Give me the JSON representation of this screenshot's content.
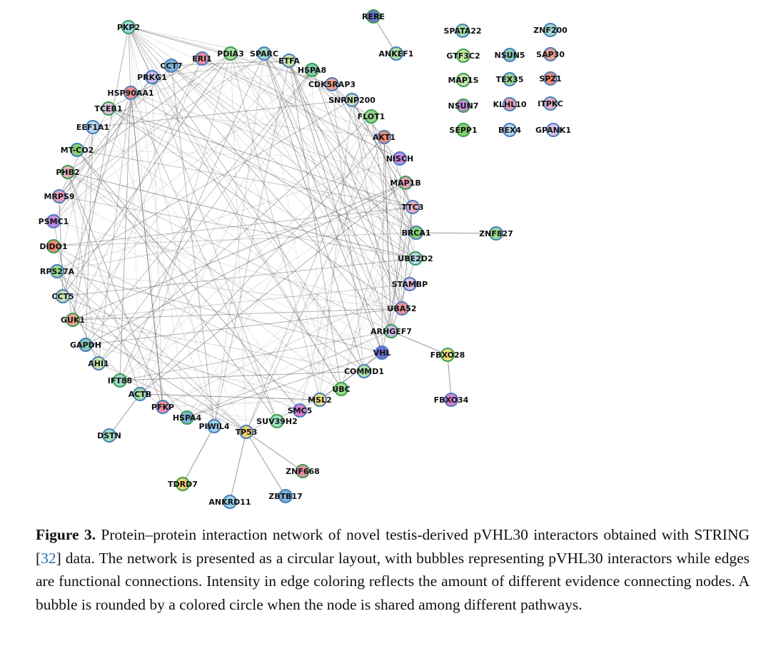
{
  "figure": {
    "nodes": [
      "PKP2",
      "CCT7",
      "ERI1",
      "PDIA3",
      "SPARC",
      "ETFA",
      "HSPA8",
      "CDK5RAP3",
      "SNRNP200",
      "FLOT1",
      "AKT1",
      "NISCH",
      "MAP1B",
      "TTC3",
      "BRCA1",
      "UBE2D2",
      "STAMBP",
      "UBA52",
      "ARHGEF7",
      "VHL",
      "COMMD1",
      "UBC",
      "MSL2",
      "SMC5",
      "SUV39H2",
      "TP53",
      "PIWIL4",
      "HSPA4",
      "PFKP",
      "ACTB",
      "IFT88",
      "AHI1",
      "GAPDH",
      "GUK1",
      "CCT5",
      "RPS27A",
      "DIDO1",
      "PSMC1",
      "MRPS9",
      "PHB2",
      "MT-CO2",
      "EEF1A1",
      "TCEB1",
      "HSP90AA1",
      "PRKG1",
      "RERE",
      "ANKEF1",
      "ZNF827",
      "FBXO28",
      "FBXO34",
      "DSTN",
      "TDRD7",
      "ANKRD11",
      "ZBTB17",
      "ZNF668",
      "SPATA22",
      "ZNF200",
      "GTF3C2",
      "NSUN5",
      "SAP30",
      "MAP1S",
      "TEX35",
      "SPZ1",
      "NSUN7",
      "KLHL10",
      "ITPKC",
      "SEPP1",
      "BEX4",
      "GPANK1"
    ]
  },
  "caption": {
    "label": "Figure 3.",
    "before": "Protein–protein interaction network of novel testis-derived pVHL30 interactors obtained with STRING [",
    "ref": "32",
    "after": "] data. The network is presented as a circular layout, with bubbles representing pVHL30 interactors while edges are functional connections. Intensity in edge coloring reflects the amount of different evidence connecting nodes. A bubble is rounded by a colored circle when the node is shared among different pathways."
  }
}
